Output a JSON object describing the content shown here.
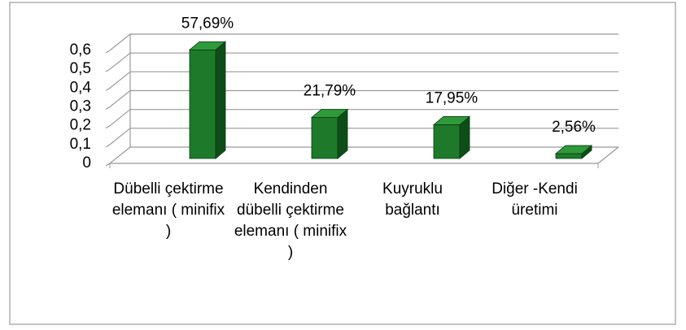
{
  "chart_data": {
    "type": "bar3d",
    "categories": [
      "Dübelli çektirme elemanı ( minifix )",
      "Kendinden dübelli çektirme elemanı ( minifix )",
      "Kuyruklu bağlantı",
      "Diğer -Kendi üretimi"
    ],
    "values": [
      0.5769,
      0.2179,
      0.1795,
      0.0256
    ],
    "value_labels": [
      "57,69%",
      "21,79%",
      "17,95%",
      "2,56%"
    ],
    "color": "#1e7a2a",
    "ylim": [
      0,
      0.6
    ],
    "yticks": [
      0,
      {
        "value": 0.1,
        "label": "0,1"
      },
      {
        "value": 0.2,
        "label": "0,2"
      },
      {
        "value": 0.3,
        "label": "0,3"
      },
      {
        "value": 0.4,
        "label": "0,4"
      },
      {
        "value": 0.5,
        "label": "0,5"
      },
      {
        "value": 0.6,
        "label": "0,6"
      }
    ],
    "grid": true
  }
}
